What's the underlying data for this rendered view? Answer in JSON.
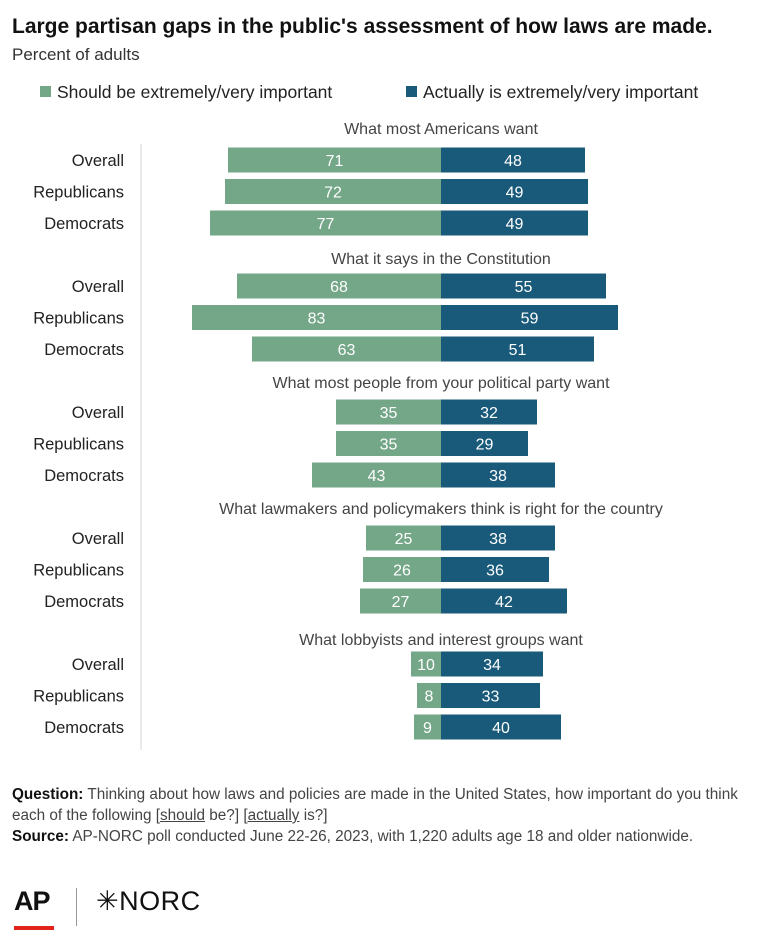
{
  "title": "Large partisan gaps in the public's assessment of how laws are made.",
  "subtitle": "Percent of adults",
  "legend": [
    {
      "label": "Should be extremely/very important",
      "color": "#74a688"
    },
    {
      "label": "Actually is extremely/very important",
      "color": "#195a7a"
    }
  ],
  "chart_data": {
    "type": "bar",
    "orientation": "diverging-horizontal",
    "title": "Large partisan gaps in the public's assessment of how laws are made.",
    "subtitle": "Percent of adults",
    "series": [
      {
        "name": "Should be extremely/very important",
        "color": "#74a688"
      },
      {
        "name": "Actually is extremely/very important",
        "color": "#195a7a"
      }
    ],
    "groups": [
      {
        "label": "What most Americans want",
        "rows": [
          {
            "label": "Overall",
            "should": 71,
            "actually": 48
          },
          {
            "label": "Republicans",
            "should": 72,
            "actually": 49
          },
          {
            "label": "Democrats",
            "should": 77,
            "actually": 49
          }
        ]
      },
      {
        "label": "What it says in the Constitution",
        "rows": [
          {
            "label": "Overall",
            "should": 68,
            "actually": 55
          },
          {
            "label": "Republicans",
            "should": 83,
            "actually": 59
          },
          {
            "label": "Democrats",
            "should": 63,
            "actually": 51
          }
        ]
      },
      {
        "label": "What most people from your political party want",
        "rows": [
          {
            "label": "Overall",
            "should": 35,
            "actually": 32
          },
          {
            "label": "Republicans",
            "should": 35,
            "actually": 29
          },
          {
            "label": "Democrats",
            "should": 43,
            "actually": 38
          }
        ]
      },
      {
        "label": "What lawmakers and policymakers think is right for the country",
        "rows": [
          {
            "label": "Overall",
            "should": 25,
            "actually": 38
          },
          {
            "label": "Republicans",
            "should": 26,
            "actually": 36
          },
          {
            "label": "Democrats",
            "should": 27,
            "actually": 42
          }
        ]
      },
      {
        "label": "What lobbyists and interest groups want",
        "rows": [
          {
            "label": "Overall",
            "should": 10,
            "actually": 34
          },
          {
            "label": "Republicans",
            "should": 8,
            "actually": 33
          },
          {
            "label": "Democrats",
            "should": 9,
            "actually": 40
          }
        ]
      }
    ]
  },
  "notes": {
    "question_label": "Question:",
    "question_pre": " Thinking about how laws and policies are made in the United States, how important do you think each of the following [",
    "question_should": "should",
    "question_mid": " be?] [",
    "question_actually": "actually",
    "question_post": " is?]",
    "source_label": "Source:",
    "source_text": " AP-NORC poll conducted June 22-26, 2023, with 1,220 adults age 18 and older nationwide."
  },
  "logos": {
    "ap": "AP",
    "norc": "✳NORC"
  }
}
